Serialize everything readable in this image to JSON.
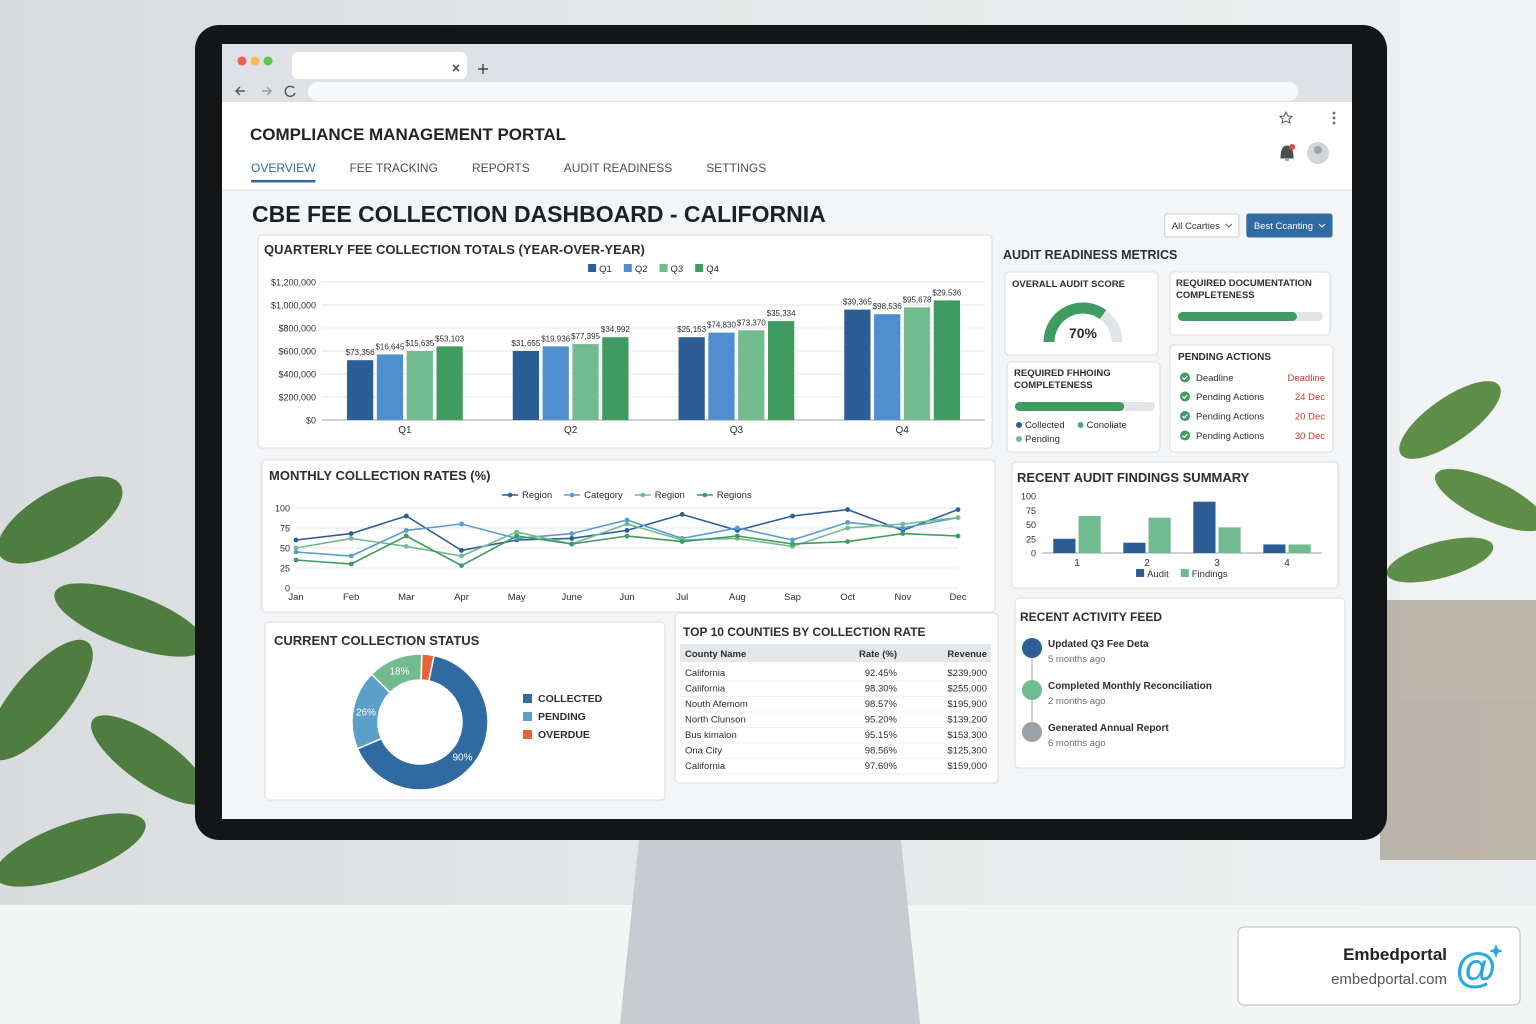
{
  "portal": {
    "title": "COMPLIANCE MANAGEMENT PORTAL",
    "nav": [
      "OVERVIEW",
      "FEE TRACKING",
      "REPORTS",
      "AUDIT READINESS",
      "SETTINGS"
    ],
    "active_nav": 0
  },
  "dashboard": {
    "title": "CBE FEE COLLECTION DASHBOARD - CALIFORNIA",
    "filters": [
      "All Ccarties",
      "Best Ccanting"
    ]
  },
  "audit_readiness": {
    "title": "AUDIT READINESS METRICS",
    "overall_score": {
      "title": "OVERALL AUDIT SCORE",
      "value": 70,
      "value_label": "70%",
      "lim": [
        0,
        100
      ],
      "color": "#3f9b5f"
    },
    "documentation": {
      "title": "REQUIRED DOCUMENTATION COMPLETENESS",
      "value": 82,
      "lim": [
        0,
        100
      ],
      "color": "#3f9b5f"
    },
    "funding": {
      "title": "REQUIRED FHHOING COMPLETENESS",
      "value": 78,
      "lim": [
        0,
        100
      ],
      "color": "#3f9b5f",
      "legend": [
        {
          "name": "Collected",
          "color": "#2c5d94"
        },
        {
          "name": "Conoliate",
          "color": "#4aa3a0"
        },
        {
          "name": "Pending",
          "color": "#72bb8f"
        }
      ]
    },
    "pending_actions": {
      "title": "PENDING ACTIONS",
      "header": [
        "Deadline",
        "Deadline"
      ],
      "rows": [
        [
          "Pending Actions",
          "24 Dec"
        ],
        [
          "Pending Actions",
          "20 Dec"
        ],
        [
          "Pending Actions",
          "30 Dec"
        ]
      ]
    }
  },
  "counties": {
    "title": "TOP 10 COUNTIES BY COLLECTION RATE",
    "header": [
      "County Name",
      "Rate (%)",
      "Revenue"
    ],
    "rows": [
      [
        "California",
        "92.45%",
        "$239,900"
      ],
      [
        "California",
        "98.30%",
        "$255,000"
      ],
      [
        "Nouth Afemom",
        "98.57%",
        "$195,900"
      ],
      [
        "North Clunson",
        "95.20%",
        "$139,200"
      ],
      [
        "Bus kimaion",
        "95.15%",
        "$153,300"
      ],
      [
        "Ona City",
        "98.56%",
        "$125,300"
      ],
      [
        "California",
        "97.60%",
        "$159,000"
      ]
    ]
  },
  "activity": {
    "title": "RECENT ACTIVITY FEED",
    "items": [
      {
        "title": "Updated Q3 Fee Deta",
        "time": "5 months ago",
        "color": "#2c5d94"
      },
      {
        "title": "Completed Monthly Reconciliation",
        "time": "2 months ago",
        "color": "#72bb8f"
      },
      {
        "title": "Generated Annual Report",
        "time": "6 months ago",
        "color": "#9aa0a6"
      }
    ]
  },
  "badge": {
    "name": "Embedportal",
    "url": "embedportal.com",
    "icon": "@"
  },
  "chart_data": [
    {
      "type": "bar",
      "title": "QUARTERLY FEE COLLECTION TOTALS (YEAR-OVER-YEAR)",
      "categories": [
        "Q1",
        "Q2",
        "Q3",
        "Q4"
      ],
      "series": [
        {
          "name": "Q1",
          "color": "#2c5d94",
          "values": [
            520000,
            600000,
            720000,
            960000
          ]
        },
        {
          "name": "Q2",
          "color": "#4f8fcf",
          "values": [
            570000,
            640000,
            760000,
            920000
          ]
        },
        {
          "name": "Q3",
          "color": "#72bb8f",
          "values": [
            600000,
            660000,
            780000,
            980000
          ]
        },
        {
          "name": "Q4",
          "color": "#3f9b5f",
          "values": [
            640000,
            720000,
            860000,
            1040000
          ]
        }
      ],
      "annotations": [
        "$73,356",
        "$16,645",
        "$15,635",
        "$53,103",
        "$31,655",
        "$19,936",
        "$77,395",
        "$34,992",
        "$25,153",
        "$74,830",
        "$73,370",
        "$35,334",
        "$39,365",
        "$98,536",
        "$95,678",
        "$29,536"
      ],
      "ylim": [
        0,
        1200000
      ],
      "yticks": [
        {
          "value": 0,
          "label": "$0"
        },
        {
          "value": 200000,
          "label": "$200,000"
        },
        {
          "value": 400000,
          "label": "$400,000"
        },
        {
          "value": 600000,
          "label": "$600,000"
        },
        {
          "value": 800000,
          "label": "$800,000"
        },
        {
          "value": 1000000,
          "label": "$1,000,000"
        },
        {
          "value": 1200000,
          "label": "$1,200,000"
        }
      ],
      "grid": true,
      "legend": "top"
    },
    {
      "type": "line",
      "title": "MONTHLY COLLECTION RATES (%)",
      "categories": [
        "Jan",
        "Feb",
        "Mar",
        "Apr",
        "May",
        "June",
        "Jun",
        "Jul",
        "Aug",
        "Sap",
        "Oct",
        "Nov",
        "Dec"
      ],
      "series": [
        {
          "name": "Region",
          "color": "#2c5d94",
          "values": [
            60,
            68,
            90,
            47,
            60,
            62,
            72,
            92,
            72,
            90,
            98,
            72,
            98
          ]
        },
        {
          "name": "Category",
          "color": "#5b9bd5",
          "values": [
            45,
            40,
            72,
            80,
            62,
            68,
            85,
            62,
            75,
            60,
            82,
            75,
            88
          ]
        },
        {
          "name": "Region",
          "color": "#72bb8f",
          "values": [
            50,
            62,
            52,
            40,
            70,
            55,
            80,
            60,
            62,
            52,
            75,
            80,
            88
          ]
        },
        {
          "name": "Regions",
          "color": "#3f9b5f",
          "values": [
            35,
            30,
            65,
            28,
            65,
            55,
            65,
            58,
            65,
            55,
            58,
            68,
            65
          ]
        }
      ],
      "ylim": [
        0,
        100
      ],
      "yticks": [
        0,
        25,
        50,
        75,
        100
      ],
      "grid": true,
      "legend": "top"
    },
    {
      "type": "donut",
      "title": "CURRENT COLLECTION STATUS",
      "categories": [
        "COLLECTED",
        "PENDING",
        null,
        "OVERDUE"
      ],
      "values": [
        90,
        26,
        18,
        4
      ],
      "value_labels": [
        "90%",
        "26%",
        "18%",
        null
      ],
      "colors": [
        "#2f6aa0",
        "#5aa0c8",
        "#72bb8f",
        "#e8623a"
      ]
    },
    {
      "type": "bar",
      "title": "RECENT AUDIT FINDINGS SUMMARY",
      "categories": [
        "1",
        "2",
        "3",
        "4"
      ],
      "series": [
        {
          "name": "Audit",
          "color": "#2c5d94",
          "values": [
            25,
            18,
            90,
            15
          ]
        },
        {
          "name": "Findings",
          "color": "#72bb8f",
          "values": [
            65,
            62,
            45,
            15
          ]
        }
      ],
      "ylim": [
        0,
        100
      ],
      "yticks": [
        0,
        25,
        50,
        75,
        100
      ],
      "grid": false,
      "legend": "bottom"
    }
  ]
}
